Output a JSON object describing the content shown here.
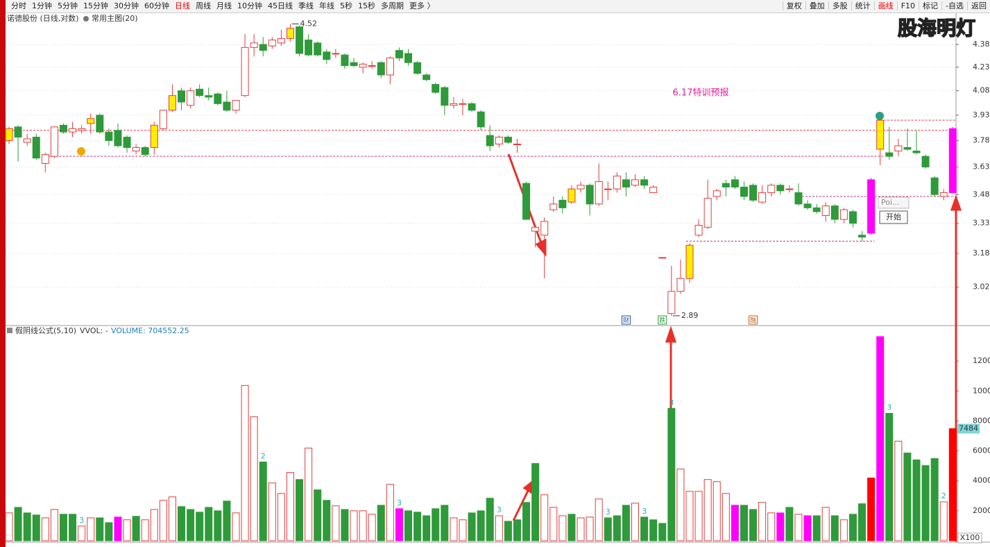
{
  "toolbar": {
    "periods": [
      "分时",
      "1分钟",
      "5分钟",
      "15分钟",
      "30分钟",
      "60分钟",
      "日线",
      "周线",
      "月线",
      "10分钟",
      "45日线",
      "季线",
      "年线",
      "5秒",
      "15秒",
      "多周期",
      "更多 〉"
    ],
    "active_period": 6,
    "buttons": [
      "复权",
      "叠加",
      "多股",
      "统计",
      "画线",
      "F10",
      "标记",
      "-自选",
      "返回"
    ],
    "active_button": 4
  },
  "watermark": "股海明灯",
  "popup": {
    "input": "Poi...",
    "button": "开始"
  },
  "chart_data": [
    {
      "type": "candlestick",
      "title": "诺德股份 (日线,对数)",
      "subtitle": "常用主图(20)",
      "log": true,
      "grid": true,
      "ylim": [
        2.85,
        4.59
      ],
      "yticks": [
        4.38,
        4.23,
        4.08,
        3.93,
        3.78,
        3.63,
        3.48,
        3.33,
        3.18,
        3.02
      ],
      "up_color": "#e03c3c",
      "down_color": "#2e9a3a",
      "open": [
        3.78,
        3.86,
        3.77,
        3.8,
        3.65,
        3.69,
        3.87,
        3.83,
        3.84,
        3.88,
        3.93,
        3.83,
        3.84,
        3.8,
        3.72,
        3.74,
        3.74,
        3.85,
        3.96,
        4.08,
        3.99,
        4.09,
        4.05,
        4.06,
        4.01,
        3.96,
        4.05,
        4.36,
        4.38,
        4.37,
        4.39,
        4.42,
        4.5,
        4.41,
        4.39,
        4.33,
        4.32,
        4.31,
        4.26,
        4.23,
        4.24,
        4.26,
        4.18,
        4.34,
        4.32,
        4.26,
        4.18,
        4.12,
        4.1,
        3.99,
        4.0,
        4.0,
        3.95,
        3.81,
        3.76,
        3.8,
        3.76,
        3.54,
        3.29,
        3.27,
        3.4,
        3.45,
        3.44,
        3.51,
        3.53,
        3.43,
        3.51,
        3.51,
        3.56,
        3.53,
        3.56,
        3.49,
        3.16,
        2.9,
        3.0,
        3.06,
        3.27,
        3.31,
        3.47,
        3.54,
        3.56,
        3.52,
        3.53,
        3.44,
        3.49,
        3.53,
        3.51,
        3.49,
        3.43,
        3.41,
        3.37,
        3.42,
        3.35,
        3.39,
        3.27,
        3.28,
        3.73,
        3.71,
        3.72,
        3.74,
        3.72,
        3.69,
        3.57,
        3.47,
        3.49
      ],
      "high": [
        3.86,
        3.87,
        3.82,
        3.82,
        3.71,
        3.86,
        3.88,
        3.89,
        3.87,
        3.94,
        3.94,
        3.85,
        3.88,
        3.81,
        3.76,
        3.75,
        3.89,
        3.96,
        4.12,
        4.1,
        4.1,
        4.12,
        4.1,
        4.07,
        4.08,
        4.02,
        4.45,
        4.45,
        4.43,
        4.43,
        4.48,
        4.52,
        4.51,
        4.45,
        4.4,
        4.35,
        4.35,
        4.32,
        4.29,
        4.26,
        4.27,
        4.27,
        4.3,
        4.36,
        4.35,
        4.27,
        4.19,
        4.13,
        4.11,
        4.04,
        4.03,
        4.01,
        3.96,
        3.87,
        3.81,
        3.81,
        3.79,
        3.55,
        3.32,
        3.36,
        3.47,
        3.47,
        3.53,
        3.55,
        3.54,
        3.65,
        3.55,
        3.6,
        3.6,
        3.59,
        3.58,
        3.53,
        3.16,
        3.12,
        3.15,
        3.23,
        3.35,
        3.56,
        3.51,
        3.56,
        3.58,
        3.55,
        3.54,
        3.53,
        3.54,
        3.54,
        3.53,
        3.54,
        3.45,
        3.43,
        3.44,
        3.43,
        3.41,
        3.4,
        3.29,
        3.57,
        3.91,
        3.86,
        3.79,
        3.85,
        3.84,
        3.7,
        3.58,
        3.51,
        3.86
      ],
      "low": [
        3.76,
        3.66,
        3.75,
        3.67,
        3.6,
        3.68,
        3.82,
        3.8,
        3.82,
        3.82,
        3.82,
        3.75,
        3.74,
        3.71,
        3.7,
        3.69,
        3.7,
        3.84,
        3.95,
        3.96,
        3.97,
        4.04,
        4.02,
        3.99,
        3.95,
        3.94,
        4.04,
        4.3,
        4.3,
        4.35,
        4.37,
        4.4,
        4.3,
        4.3,
        4.3,
        4.25,
        4.29,
        4.22,
        4.23,
        4.19,
        4.22,
        4.16,
        4.12,
        4.27,
        4.24,
        4.18,
        4.14,
        4.06,
        3.93,
        3.97,
        3.93,
        3.95,
        3.84,
        3.72,
        3.74,
        3.76,
        3.71,
        3.35,
        3.21,
        3.06,
        3.39,
        3.38,
        3.43,
        3.49,
        3.37,
        3.42,
        3.45,
        3.49,
        3.47,
        3.52,
        3.51,
        3.49,
        3.16,
        2.89,
        2.99,
        3.04,
        3.26,
        3.3,
        3.45,
        3.47,
        3.51,
        3.45,
        3.44,
        3.43,
        3.47,
        3.48,
        3.49,
        3.42,
        3.4,
        3.38,
        3.34,
        3.33,
        3.33,
        3.31,
        3.24,
        3.27,
        3.64,
        3.67,
        3.69,
        3.72,
        3.7,
        3.62,
        3.47,
        3.45,
        3.49
      ],
      "close": [
        3.85,
        3.8,
        3.79,
        3.68,
        3.7,
        3.86,
        3.83,
        3.85,
        3.85,
        3.91,
        3.83,
        3.78,
        3.75,
        3.74,
        3.74,
        3.7,
        3.87,
        3.96,
        4.05,
        4.01,
        4.08,
        4.05,
        4.04,
        4.0,
        3.96,
        4.02,
        4.36,
        4.39,
        4.34,
        4.41,
        4.42,
        4.49,
        4.32,
        4.31,
        4.31,
        4.28,
        4.32,
        4.24,
        4.24,
        4.25,
        4.24,
        4.18,
        4.29,
        4.29,
        4.26,
        4.19,
        4.15,
        4.07,
        3.99,
        4.0,
        4.0,
        3.96,
        3.86,
        3.75,
        3.8,
        3.77,
        3.76,
        3.35,
        3.31,
        3.34,
        3.43,
        3.41,
        3.51,
        3.53,
        3.43,
        3.55,
        3.51,
        3.58,
        3.52,
        3.56,
        3.53,
        3.52,
        3.16,
        3.0,
        3.06,
        3.22,
        3.32,
        3.46,
        3.5,
        3.52,
        3.52,
        3.47,
        3.45,
        3.49,
        3.53,
        3.5,
        3.51,
        3.43,
        3.41,
        3.39,
        3.42,
        3.35,
        3.4,
        3.33,
        3.26,
        3.56,
        3.9,
        3.69,
        3.75,
        3.73,
        3.71,
        3.63,
        3.48,
        3.49,
        3.85
      ],
      "highlights": [
        "#ffee00",
        null,
        null,
        null,
        null,
        null,
        null,
        null,
        null,
        "#ffee00",
        null,
        null,
        null,
        null,
        null,
        null,
        "#ffee00",
        null,
        "#ffee00",
        null,
        null,
        null,
        null,
        null,
        null,
        null,
        null,
        null,
        null,
        null,
        null,
        "#ffee00",
        null,
        null,
        null,
        null,
        null,
        null,
        null,
        null,
        null,
        null,
        null,
        null,
        null,
        null,
        null,
        null,
        null,
        null,
        null,
        null,
        null,
        null,
        null,
        null,
        null,
        null,
        null,
        null,
        null,
        null,
        "#ffee00",
        null,
        null,
        null,
        null,
        null,
        null,
        null,
        null,
        null,
        null,
        null,
        null,
        "#ffee00",
        null,
        null,
        null,
        null,
        null,
        null,
        null,
        null,
        null,
        null,
        null,
        null,
        null,
        null,
        null,
        null,
        null,
        null,
        null,
        "#ff00ff",
        "#ffee00",
        null,
        null,
        null,
        null,
        null,
        null,
        null,
        "#ff00ff"
      ],
      "annotations": [
        {
          "text": "4.52",
          "index": 31
        },
        {
          "text": "2.89",
          "index": 73
        },
        {
          "text": "6.17特训预报"
        }
      ],
      "markers": [
        {
          "text": "财",
          "index": 68,
          "color": "#2050a0"
        },
        {
          "text": "跌",
          "index": 72,
          "color": "#2e9a3a"
        },
        {
          "text": "融",
          "index": 82,
          "color": "#c06020"
        }
      ],
      "levels": [
        {
          "value": 3.84,
          "from": 0,
          "to": 104,
          "color": "#e03c3c"
        },
        {
          "value": 3.69,
          "from": 4,
          "to": 96,
          "color": "#c0308a"
        },
        {
          "value": 3.24,
          "from": 75,
          "to": 95,
          "color": "#c0308a"
        },
        {
          "value": 3.47,
          "from": 87,
          "to": 104,
          "color": "#c0308a"
        },
        {
          "value": 3.9,
          "from": 96,
          "to": 104,
          "color": "#e03c3c"
        }
      ]
    },
    {
      "type": "bar",
      "title": "假阴线公式(5,10)",
      "indicator": "VVOL: -",
      "volume_text": "VOLUME: 704552.25",
      "unit": "X100",
      "ylim": [
        0,
        13860
      ],
      "yticks": [
        2000,
        4000,
        6000,
        8000,
        10000,
        12000
      ],
      "hollow_color": "#e03c3c",
      "tag_color": "#7fd6d6",
      "values": [
        1860,
        2230,
        1860,
        1720,
        1530,
        2090,
        1770,
        1770,
        980,
        1530,
        1530,
        1210,
        1580,
        1400,
        1630,
        1400,
        2090,
        2700,
        2930,
        2280,
        2090,
        1910,
        2230,
        2000,
        2650,
        1860,
        10370,
        8280,
        5260,
        3860,
        3160,
        4560,
        4090,
        6190,
        3400,
        2700,
        2330,
        2090,
        2000,
        2000,
        1770,
        2370,
        3770,
        2140,
        2000,
        1910,
        1670,
        2140,
        2370,
        1530,
        1400,
        1860,
        2000,
        2840,
        1670,
        1300,
        1400,
        2560,
        5160,
        3070,
        2230,
        1670,
        1770,
        1530,
        1580,
        2790,
        1530,
        1670,
        2370,
        2510,
        1580,
        1400,
        1160,
        8840,
        4790,
        3300,
        3300,
        4090,
        3950,
        3160,
        2370,
        2370,
        2090,
        2560,
        1860,
        1860,
        2230,
        1770,
        1670,
        1670,
        2230,
        1670,
        1400,
        1770,
        2470,
        4190,
        13630,
        8510,
        6650,
        5860,
        5400,
        5020,
        5490,
        2600,
        7484
      ],
      "colors": [
        "#e03c3c",
        "#2e9a3a",
        "#2e9a3a",
        "#2e9a3a",
        "#e03c3c",
        "#e03c3c",
        "#2e9a3a",
        "#2e9a3a",
        "#e03c3c",
        "#e03c3c",
        "#2e9a3a",
        "#2e9a3a",
        "#ff00ff",
        "#e03c3c",
        "#2e9a3a",
        "#e03c3c",
        "#e03c3c",
        "#e03c3c",
        "#e03c3c",
        "#2e9a3a",
        "#2e9a3a",
        "#2e9a3a",
        "#2e9a3a",
        "#2e9a3a",
        "#2e9a3a",
        "#e03c3c",
        "#e03c3c",
        "#e03c3c",
        "#2e9a3a",
        "#e03c3c",
        "#e03c3c",
        "#e03c3c",
        "#2e9a3a",
        "#e03c3c",
        "#2e9a3a",
        "#2e9a3a",
        "#e03c3c",
        "#2e9a3a",
        "#e03c3c",
        "#e03c3c",
        "#e03c3c",
        "#2e9a3a",
        "#e03c3c",
        "#ff00ff",
        "#2e9a3a",
        "#2e9a3a",
        "#2e9a3a",
        "#2e9a3a",
        "#2e9a3a",
        "#e03c3c",
        "#e03c3c",
        "#2e9a3a",
        "#2e9a3a",
        "#2e9a3a",
        "#e03c3c",
        "#2e9a3a",
        "#2e9a3a",
        "#2e9a3a",
        "#2e9a3a",
        "#e03c3c",
        "#e03c3c",
        "#e03c3c",
        "#2e9a3a",
        "#e03c3c",
        "#e03c3c",
        "#e03c3c",
        "#2e9a3a",
        "#2e9a3a",
        "#2e9a3a",
        "#e03c3c",
        "#2e9a3a",
        "#2e9a3a",
        "#2e9a3a",
        "#2e9a3a",
        "#e03c3c",
        "#e03c3c",
        "#e03c3c",
        "#e03c3c",
        "#e03c3c",
        "#e03c3c",
        "#ff00ff",
        "#2e9a3a",
        "#2e9a3a",
        "#e03c3c",
        "#e03c3c",
        "#ff00ff",
        "#2e9a3a",
        "#e03c3c",
        "#ff00ff",
        "#2e9a3a",
        "#e03c3c",
        "#2e9a3a",
        "#e03c3c",
        "#2e9a3a",
        "#2e9a3a",
        "#ff0000",
        "#ff00ff",
        "#2e9a3a",
        "#e03c3c",
        "#2e9a3a",
        "#2e9a3a",
        "#2e9a3a",
        "#2e9a3a",
        "#e03c3c",
        "#ff0000"
      ],
      "bar_labels": [
        {
          "index": 8,
          "text": "3"
        },
        {
          "index": 28,
          "text": "2"
        },
        {
          "index": 43,
          "text": "3"
        },
        {
          "index": 54,
          "text": "3"
        },
        {
          "index": 66,
          "text": "3"
        },
        {
          "index": 70,
          "text": "3"
        },
        {
          "index": 73,
          "text": "3"
        },
        {
          "index": 97,
          "text": "3"
        },
        {
          "index": 103,
          "text": "2"
        }
      ]
    }
  ]
}
